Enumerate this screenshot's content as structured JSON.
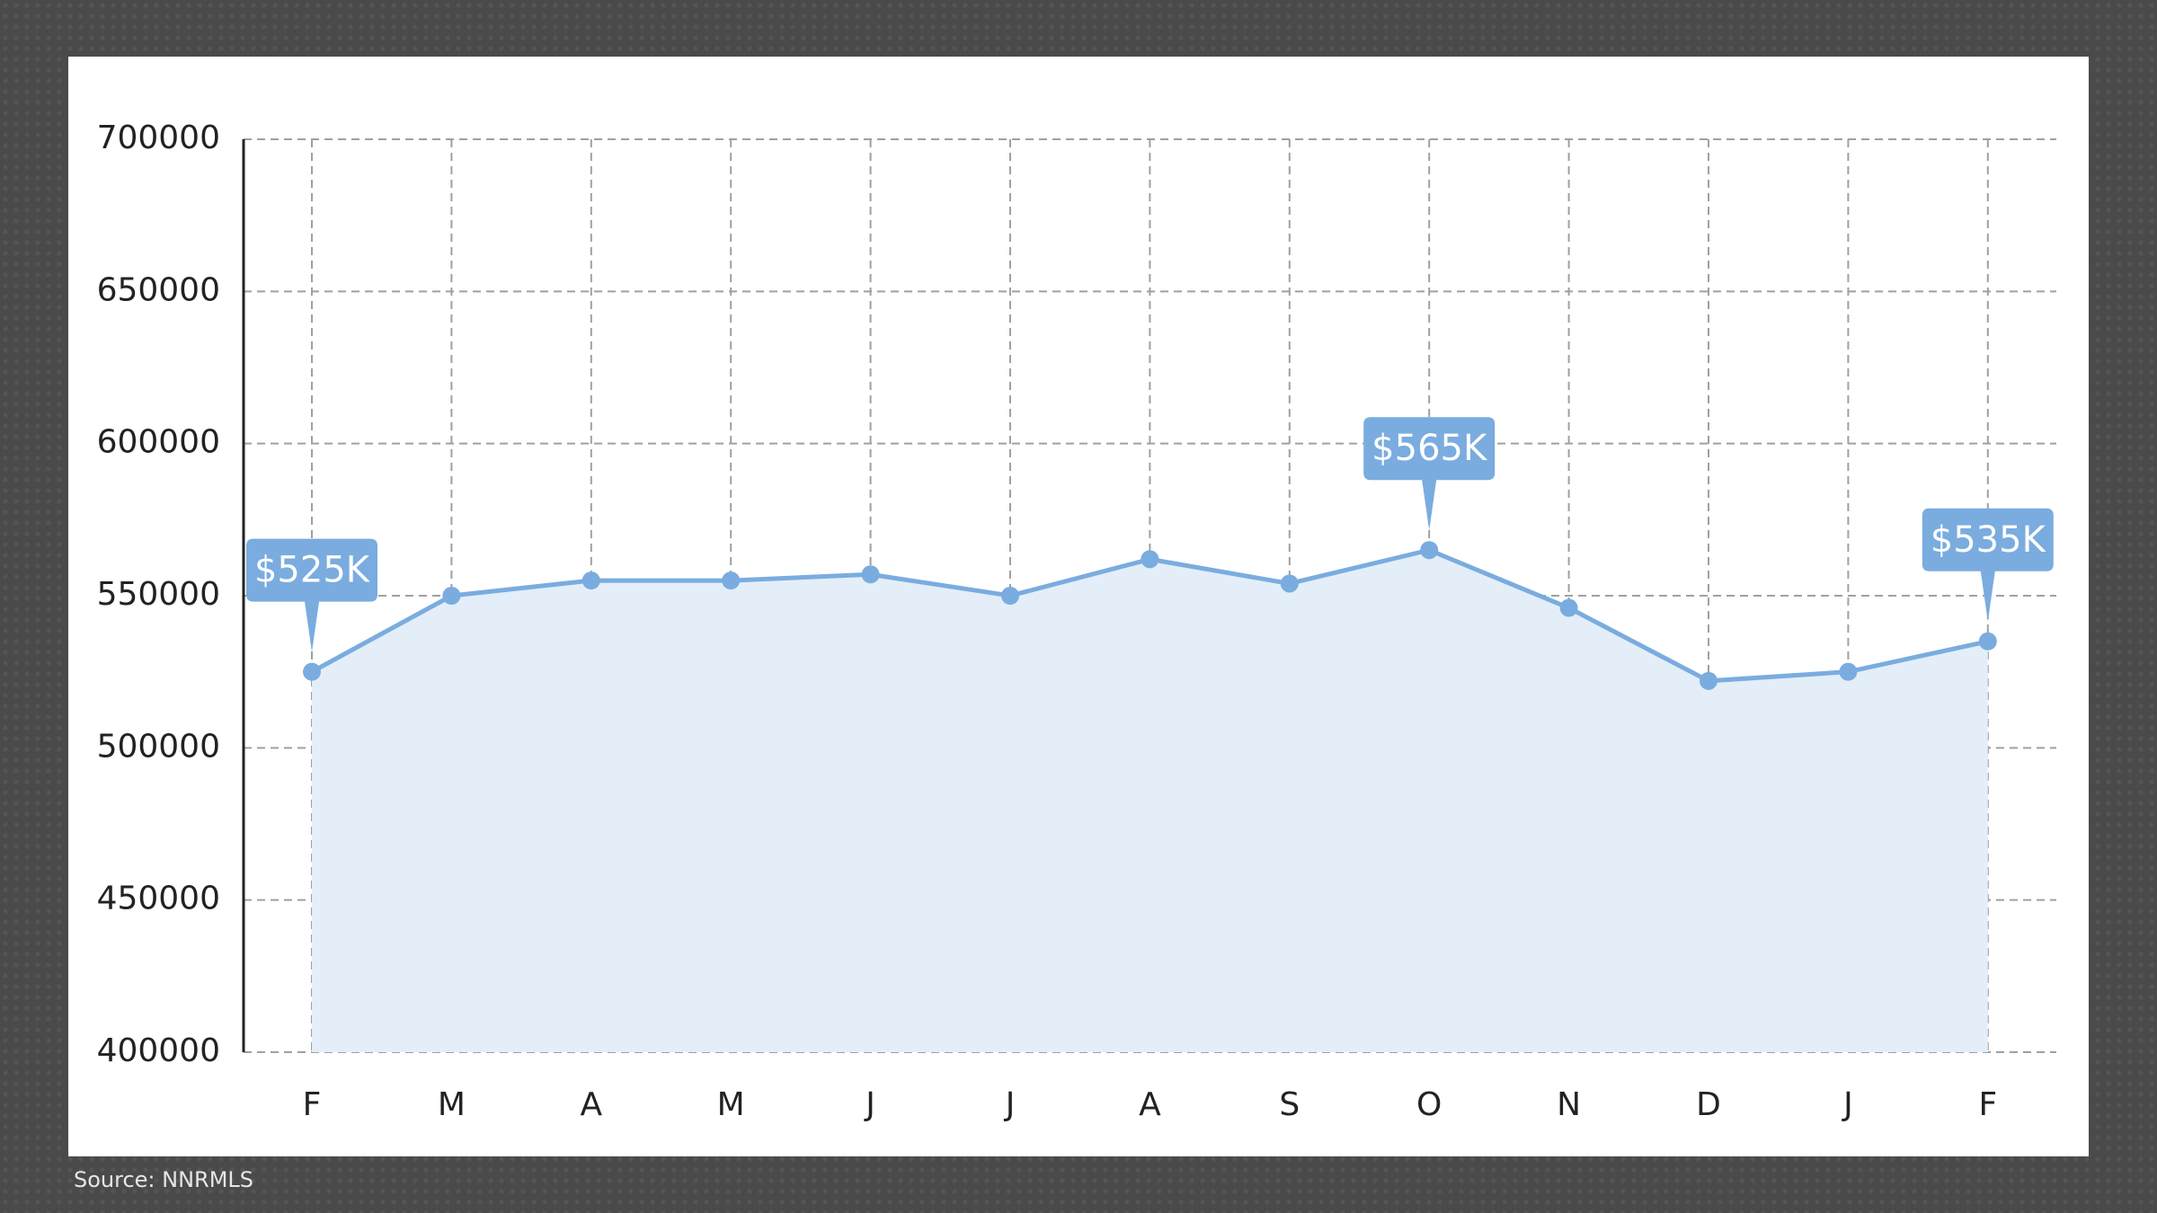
{
  "chart_data": {
    "type": "line",
    "categories": [
      "F",
      "M",
      "A",
      "M",
      "J",
      "J",
      "A",
      "S",
      "O",
      "N",
      "D",
      "J",
      "F"
    ],
    "values": [
      525000,
      550000,
      555000,
      555000,
      557000,
      550000,
      562000,
      554000,
      565000,
      546000,
      522000,
      525000,
      535000
    ],
    "value_labels": [
      "$525K",
      null,
      null,
      null,
      null,
      null,
      null,
      null,
      "$565K",
      null,
      null,
      null,
      "$535K"
    ],
    "color": "#7aacdf",
    "area_color": "#e3eef9",
    "ylim": [
      400000,
      700000
    ],
    "yticks": [
      400000,
      450000,
      500000,
      550000,
      600000,
      650000,
      700000
    ],
    "grid": true
  },
  "footer": {
    "source": "Source: NNRMLS"
  }
}
